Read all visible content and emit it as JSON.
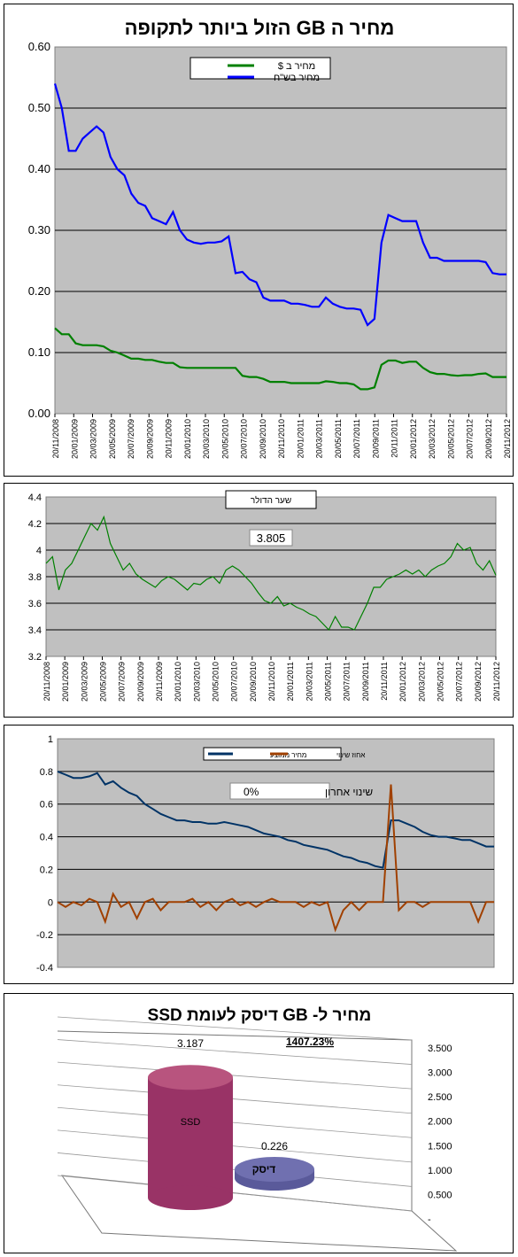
{
  "chart_data": [
    {
      "type": "line",
      "title": "מחיר ה GB הזול ביותר לתקופה",
      "ylim": [
        0,
        0.6
      ],
      "ytick_labels": [
        "0.00",
        "0.10",
        "0.20",
        "0.30",
        "0.40",
        "0.50",
        "0.60"
      ],
      "xtick_labels": [
        "20/11/2008",
        "20/01/2009",
        "20/03/2009",
        "20/05/2009",
        "20/07/2009",
        "20/09/2009",
        "20/11/2009",
        "20/01/2010",
        "20/03/2010",
        "20/05/2010",
        "20/07/2010",
        "20/09/2010",
        "20/11/2010",
        "20/01/2011",
        "20/03/2011",
        "20/05/2011",
        "20/07/2011",
        "20/09/2011",
        "20/11/2011",
        "20/01/2012",
        "20/03/2012",
        "20/05/2012",
        "20/07/2012",
        "20/09/2012",
        "20/11/2012"
      ],
      "legend": [
        "מחיר ב $",
        "מחיר בש\"ח"
      ],
      "grid": true,
      "series": [
        {
          "name": "מחיר ב $",
          "color": "#008000",
          "values": [
            0.14,
            0.13,
            0.13,
            0.115,
            0.112,
            0.112,
            0.112,
            0.11,
            0.103,
            0.1,
            0.095,
            0.09,
            0.09,
            0.088,
            0.088,
            0.085,
            0.083,
            0.083,
            0.076,
            0.075,
            0.075,
            0.075,
            0.075,
            0.075,
            0.075,
            0.075,
            0.075,
            0.062,
            0.06,
            0.06,
            0.057,
            0.052,
            0.052,
            0.052,
            0.05,
            0.05,
            0.05,
            0.05,
            0.05,
            0.053,
            0.052,
            0.05,
            0.05,
            0.048,
            0.04,
            0.04,
            0.043,
            0.08,
            0.087,
            0.087,
            0.083,
            0.085,
            0.085,
            0.075,
            0.068,
            0.065,
            0.065,
            0.063,
            0.062,
            0.063,
            0.063,
            0.065,
            0.066,
            0.06,
            0.06,
            0.06
          ]
        },
        {
          "name": "מחיר בש\"ח",
          "color": "#0000ff",
          "values": [
            0.54,
            0.5,
            0.43,
            0.43,
            0.45,
            0.46,
            0.47,
            0.46,
            0.42,
            0.4,
            0.39,
            0.36,
            0.345,
            0.34,
            0.32,
            0.315,
            0.31,
            0.33,
            0.3,
            0.285,
            0.28,
            0.278,
            0.28,
            0.28,
            0.282,
            0.29,
            0.23,
            0.232,
            0.22,
            0.215,
            0.19,
            0.185,
            0.185,
            0.185,
            0.18,
            0.18,
            0.178,
            0.175,
            0.175,
            0.19,
            0.18,
            0.175,
            0.172,
            0.172,
            0.17,
            0.145,
            0.155,
            0.28,
            0.325,
            0.32,
            0.315,
            0.315,
            0.315,
            0.28,
            0.255,
            0.255,
            0.25,
            0.25,
            0.25,
            0.25,
            0.25,
            0.25,
            0.248,
            0.23,
            0.228,
            0.228
          ]
        }
      ]
    },
    {
      "type": "line",
      "title": "שער הדולר",
      "ylim": [
        3.2,
        4.4
      ],
      "ytick_labels": [
        "3.2",
        "3.4",
        "3.6",
        "3.8",
        "4",
        "4.2",
        "4.4"
      ],
      "xtick_labels": [
        "20/11/2008",
        "20/01/2009",
        "20/03/2009",
        "20/05/2009",
        "20/07/2009",
        "20/09/2009",
        "20/11/2009",
        "20/01/2010",
        "20/03/2010",
        "20/05/2010",
        "20/07/2010",
        "20/09/2010",
        "20/11/2010",
        "20/01/2011",
        "20/03/2011",
        "20/05/2011",
        "20/07/2011",
        "20/09/2011",
        "20/11/2011",
        "20/01/2012",
        "20/03/2012",
        "20/05/2012",
        "20/07/2012",
        "20/09/2012",
        "20/11/2012"
      ],
      "annotation": "3.805",
      "grid": true,
      "series": [
        {
          "name": "שער הדולר",
          "color": "#008000",
          "values": [
            3.9,
            3.95,
            3.7,
            3.85,
            3.9,
            4.0,
            4.1,
            4.2,
            4.15,
            4.25,
            4.05,
            3.95,
            3.85,
            3.9,
            3.82,
            3.78,
            3.75,
            3.72,
            3.77,
            3.8,
            3.78,
            3.74,
            3.7,
            3.75,
            3.74,
            3.78,
            3.8,
            3.75,
            3.85,
            3.88,
            3.85,
            3.8,
            3.75,
            3.68,
            3.62,
            3.6,
            3.65,
            3.58,
            3.6,
            3.57,
            3.55,
            3.52,
            3.5,
            3.45,
            3.4,
            3.5,
            3.42,
            3.42,
            3.4,
            3.5,
            3.6,
            3.72,
            3.72,
            3.78,
            3.8,
            3.82,
            3.85,
            3.82,
            3.85,
            3.8,
            3.85,
            3.88,
            3.9,
            3.95,
            4.05,
            4.0,
            4.02,
            3.9,
            3.85,
            3.92,
            3.81
          ]
        }
      ]
    },
    {
      "type": "line",
      "ylim": [
        -0.4,
        1
      ],
      "ytick_labels": [
        "-0.4",
        "-0.2",
        "0",
        "0.2",
        "0.4",
        "0.6",
        "0.8",
        "1"
      ],
      "legend": [
        "מחיר ממוצע",
        "אחוז שינוי"
      ],
      "annotation_label": "שינוי אחרון",
      "annotation_value": "0%",
      "grid": true,
      "series": [
        {
          "name": "מחיר ממוצע",
          "color": "#003366",
          "values": [
            0.8,
            0.78,
            0.76,
            0.76,
            0.77,
            0.79,
            0.72,
            0.74,
            0.7,
            0.67,
            0.65,
            0.6,
            0.57,
            0.54,
            0.52,
            0.5,
            0.5,
            0.49,
            0.49,
            0.48,
            0.48,
            0.49,
            0.48,
            0.47,
            0.46,
            0.44,
            0.42,
            0.41,
            0.4,
            0.38,
            0.37,
            0.35,
            0.34,
            0.33,
            0.32,
            0.3,
            0.28,
            0.27,
            0.25,
            0.24,
            0.22,
            0.21,
            0.5,
            0.5,
            0.48,
            0.46,
            0.43,
            0.41,
            0.4,
            0.4,
            0.39,
            0.38,
            0.38,
            0.36,
            0.34,
            0.34
          ]
        },
        {
          "name": "אחוז שינוי",
          "color": "#a04000",
          "values": [
            0,
            -0.03,
            0,
            -0.02,
            0.02,
            0,
            -0.12,
            0.05,
            -0.03,
            0,
            -0.1,
            0,
            0.02,
            -0.05,
            0,
            0,
            0,
            0.02,
            -0.03,
            0,
            -0.05,
            0,
            0.02,
            -0.02,
            0,
            -0.03,
            0,
            0.02,
            0,
            0,
            0,
            -0.03,
            0,
            -0.02,
            0,
            -0.17,
            -0.05,
            0,
            -0.05,
            0,
            0,
            0,
            0.72,
            -0.05,
            0,
            0,
            -0.03,
            0,
            0,
            0,
            0,
            0,
            0,
            -0.12,
            0,
            0
          ]
        }
      ]
    },
    {
      "type": "bar",
      "title": "מחיר ל- GB דיסק לעומת SSD",
      "categories": [
        "SSD",
        "דיסק"
      ],
      "values": [
        3.187,
        0.226
      ],
      "value_labels": [
        "3.187",
        "0.226"
      ],
      "annotation": "1407.23%",
      "ytick_labels": [
        "-",
        "0.500",
        "1.000",
        "1.500",
        "2.000",
        "2.500",
        "3.000",
        "3.500"
      ],
      "colors": [
        "#993366",
        "#5a5a9a"
      ]
    }
  ]
}
